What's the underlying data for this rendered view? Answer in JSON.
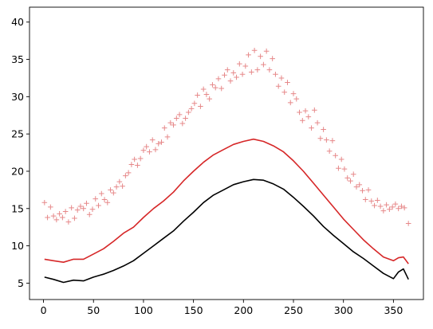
{
  "chart_data": {
    "type": "line",
    "title": "",
    "xlabel": "",
    "ylabel": "",
    "xlim": [
      -14,
      380
    ],
    "ylim": [
      2.8,
      42.0
    ],
    "x_ticks": [
      0,
      50,
      100,
      150,
      200,
      250,
      300,
      350
    ],
    "x_tick_labels": [
      "0",
      "50",
      "100",
      "150",
      "200",
      "250",
      "300",
      "350"
    ],
    "y_ticks": [
      5,
      10,
      15,
      20,
      25,
      30,
      35,
      40
    ],
    "y_tick_labels": [
      "5",
      "10",
      "15",
      "20",
      "25",
      "30",
      "35",
      "40"
    ],
    "grid": false,
    "legend": "none",
    "series": [
      {
        "kind": "line",
        "color": "#000000",
        "x": [
          1,
          10,
          20,
          30,
          40,
          50,
          60,
          70,
          80,
          90,
          100,
          110,
          120,
          130,
          140,
          150,
          160,
          170,
          180,
          190,
          200,
          210,
          220,
          230,
          240,
          250,
          260,
          270,
          280,
          290,
          300,
          310,
          320,
          330,
          340,
          350,
          355,
          360,
          365
        ],
        "y": [
          5.8,
          5.5,
          5.1,
          5.4,
          5.3,
          5.8,
          6.2,
          6.7,
          7.3,
          8.0,
          9.0,
          10.0,
          11.0,
          12.0,
          13.3,
          14.5,
          15.8,
          16.8,
          17.5,
          18.2,
          18.6,
          18.9,
          18.8,
          18.3,
          17.6,
          16.5,
          15.3,
          14.0,
          12.6,
          11.4,
          10.3,
          9.2,
          8.3,
          7.3,
          6.3,
          5.6,
          6.5,
          6.9,
          5.5
        ]
      },
      {
        "kind": "line",
        "color": "#d62728",
        "x": [
          1,
          10,
          20,
          30,
          40,
          50,
          60,
          70,
          80,
          90,
          100,
          110,
          120,
          130,
          140,
          150,
          160,
          170,
          180,
          190,
          200,
          210,
          220,
          230,
          240,
          250,
          260,
          270,
          280,
          290,
          300,
          310,
          320,
          330,
          340,
          350,
          355,
          360,
          365
        ],
        "y": [
          8.2,
          8.0,
          7.8,
          8.2,
          8.2,
          8.9,
          9.6,
          10.6,
          11.7,
          12.5,
          13.8,
          15.0,
          16.0,
          17.2,
          18.7,
          20.0,
          21.2,
          22.2,
          22.9,
          23.6,
          24.0,
          24.3,
          24.0,
          23.4,
          22.6,
          21.4,
          20.0,
          18.4,
          16.8,
          15.2,
          13.6,
          12.2,
          10.8,
          9.6,
          8.5,
          8.0,
          8.4,
          8.5,
          7.6
        ]
      },
      {
        "kind": "scatter",
        "marker": "+",
        "color": "#e37b7c",
        "x": [
          1,
          4,
          7,
          10,
          13,
          16,
          19,
          22,
          25,
          28,
          31,
          34,
          37,
          40,
          43,
          46,
          49,
          52,
          55,
          58,
          61,
          64,
          67,
          70,
          73,
          76,
          79,
          82,
          85,
          88,
          91,
          94,
          97,
          100,
          103,
          106,
          109,
          112,
          115,
          118,
          121,
          124,
          127,
          130,
          133,
          136,
          139,
          142,
          145,
          148,
          151,
          154,
          157,
          160,
          163,
          166,
          169,
          172,
          175,
          178,
          181,
          184,
          187,
          190,
          193,
          196,
          199,
          202,
          205,
          208,
          211,
          214,
          217,
          220,
          223,
          226,
          229,
          232,
          235,
          238,
          241,
          244,
          247,
          250,
          253,
          256,
          259,
          262,
          265,
          268,
          271,
          274,
          277,
          280,
          283,
          286,
          289,
          292,
          295,
          298,
          301,
          304,
          307,
          310,
          313,
          316,
          319,
          322,
          325,
          328,
          331,
          334,
          337,
          340,
          343,
          346,
          349,
          352,
          355,
          358,
          361,
          365
        ],
        "y": [
          15.8,
          13.8,
          15.2,
          14.0,
          13.5,
          14.3,
          13.8,
          14.6,
          13.2,
          15.1,
          13.7,
          14.8,
          15.3,
          15.0,
          15.7,
          14.2,
          14.9,
          16.3,
          15.4,
          17.0,
          16.2,
          15.8,
          17.5,
          17.1,
          17.9,
          18.6,
          18.0,
          19.4,
          19.8,
          20.9,
          21.6,
          20.8,
          21.7,
          22.8,
          23.3,
          22.6,
          24.2,
          22.9,
          23.7,
          23.9,
          25.8,
          24.6,
          26.5,
          26.2,
          27.1,
          27.6,
          26.4,
          27.1,
          27.9,
          28.4,
          29.1,
          30.2,
          28.7,
          31.0,
          30.3,
          29.7,
          31.6,
          31.2,
          32.4,
          31.1,
          32.9,
          33.6,
          32.1,
          33.2,
          32.6,
          34.4,
          33.0,
          34.1,
          35.6,
          33.3,
          36.2,
          33.6,
          35.4,
          34.3,
          36.1,
          33.6,
          35.1,
          33.0,
          31.4,
          32.5,
          30.6,
          31.9,
          29.2,
          30.4,
          29.7,
          27.9,
          26.8,
          28.1,
          27.3,
          25.8,
          28.2,
          26.5,
          24.4,
          25.6,
          24.2,
          22.7,
          24.1,
          22.1,
          20.4,
          21.6,
          20.3,
          19.1,
          18.7,
          19.6,
          17.9,
          18.2,
          17.4,
          16.2,
          17.5,
          16.0,
          15.4,
          16.1,
          15.3,
          14.7,
          15.5,
          14.9,
          15.2,
          15.6,
          15.0,
          15.3,
          15.1,
          13.0
        ]
      }
    ]
  }
}
